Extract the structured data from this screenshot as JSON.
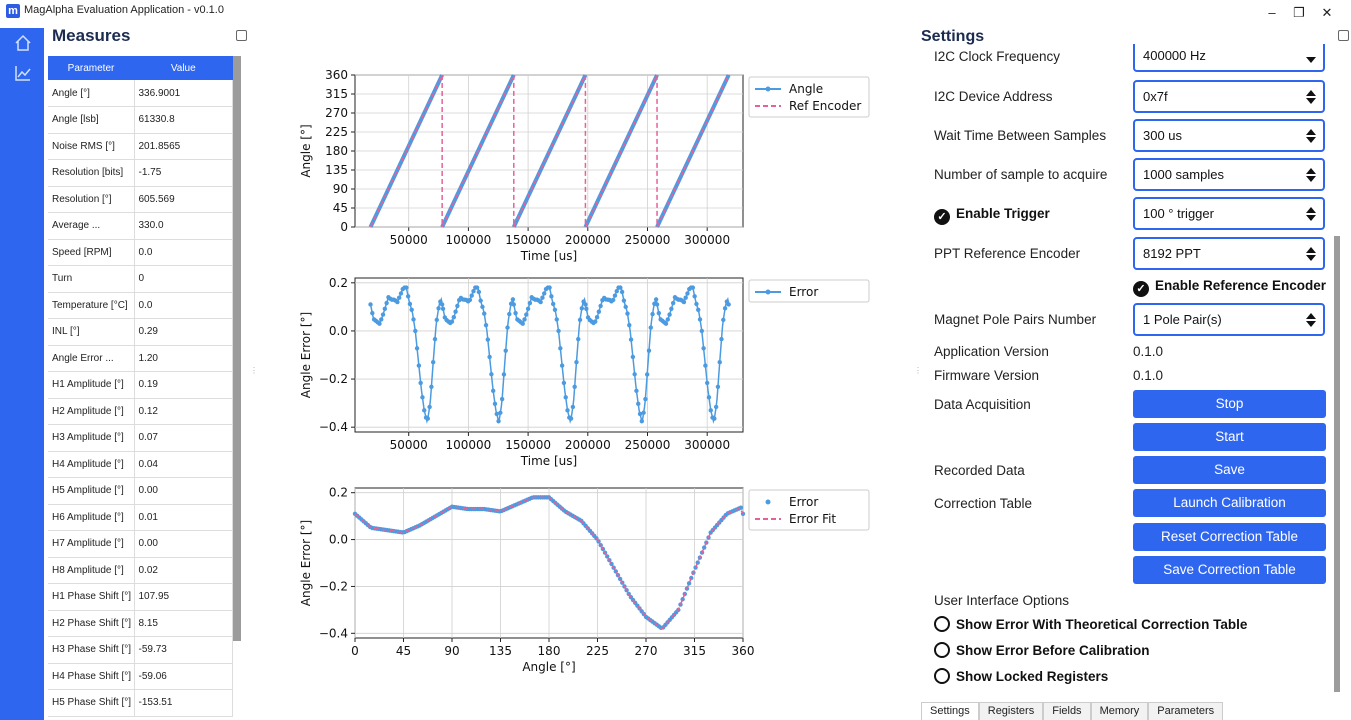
{
  "window": {
    "logo": "m",
    "title": "MagAlpha Evaluation Application - v0.1.0",
    "minimize": "–",
    "maximize": "❐",
    "close": "✕"
  },
  "nav": {
    "home_icon": "home-icon",
    "chart_icon": "chart-line-icon",
    "accent": "#2f66f0"
  },
  "measures": {
    "title": "Measures",
    "headers": [
      "Parameter",
      "Value"
    ],
    "rows": [
      [
        "Angle [°]",
        "336.9001"
      ],
      [
        "Angle [lsb]",
        "61330.8"
      ],
      [
        "Noise RMS [°]",
        "201.8565"
      ],
      [
        "Resolution [bits]",
        "-1.75"
      ],
      [
        "Resolution [°]",
        "605.569"
      ],
      [
        "Average ...",
        "330.0"
      ],
      [
        "Speed [RPM]",
        "0.0"
      ],
      [
        "Turn",
        "0"
      ],
      [
        "Temperature [°C]",
        "0.0"
      ],
      [
        "INL [°]",
        "0.29"
      ],
      [
        "Angle Error ...",
        "1.20"
      ],
      [
        "H1 Amplitude [°]",
        "0.19"
      ],
      [
        "H2 Amplitude [°]",
        "0.12"
      ],
      [
        "H3 Amplitude [°]",
        "0.07"
      ],
      [
        "H4 Amplitude [°]",
        "0.04"
      ],
      [
        "H5 Amplitude [°]",
        "0.00"
      ],
      [
        "H6 Amplitude [°]",
        "0.01"
      ],
      [
        "H7 Amplitude [°]",
        "0.00"
      ],
      [
        "H8 Amplitude [°]",
        "0.02"
      ],
      [
        "H1 Phase Shift [°]",
        "107.95"
      ],
      [
        "H2 Phase Shift [°]",
        "8.15"
      ],
      [
        "H3 Phase Shift [°]",
        "-59.73"
      ],
      [
        "H4 Phase Shift [°]",
        "-59.06"
      ],
      [
        "H5 Phase Shift [°]",
        "-153.51"
      ]
    ]
  },
  "chart_data": [
    {
      "type": "line",
      "xlabel": "Time [us]",
      "ylabel": "Angle [°]",
      "xlim": [
        5000,
        330000
      ],
      "ylim": [
        0,
        360
      ],
      "xticks": [
        50000,
        100000,
        150000,
        200000,
        250000,
        300000
      ],
      "yticks": [
        0,
        45,
        90,
        135,
        180,
        225,
        270,
        315,
        360
      ],
      "grid": true,
      "legend": "top-right-outside",
      "series": [
        {
          "name": "Angle",
          "color": "#4c9be0",
          "style": "solid-dots",
          "segments": [
            [
              [
                18000,
                0
              ],
              [
                78000,
                360
              ]
            ],
            [
              [
                78000,
                0
              ],
              [
                138000,
                360
              ]
            ],
            [
              [
                138000,
                0
              ],
              [
                198000,
                360
              ]
            ],
            [
              [
                198000,
                0
              ],
              [
                258000,
                360
              ]
            ],
            [
              [
                258000,
                0
              ],
              [
                318000,
                360
              ]
            ]
          ]
        },
        {
          "name": "Ref Encoder",
          "color": "#e8609a",
          "style": "dashed",
          "segments": [
            [
              [
                18000,
                0
              ],
              [
                78000,
                360
              ],
              [
                78000,
                0
              ],
              [
                138000,
                360
              ],
              [
                138000,
                0
              ],
              [
                198000,
                360
              ],
              [
                198000,
                0
              ],
              [
                258000,
                360
              ],
              [
                258000,
                0
              ],
              [
                318000,
                360
              ]
            ]
          ]
        }
      ]
    },
    {
      "type": "line",
      "xlabel": "Time [us]",
      "ylabel": "Angle Error [°]",
      "xlim": [
        5000,
        330000
      ],
      "ylim": [
        -0.42,
        0.22
      ],
      "xticks": [
        50000,
        100000,
        150000,
        200000,
        250000,
        300000
      ],
      "yticks": [
        -0.4,
        -0.2,
        0.0,
        0.2
      ],
      "grid": true,
      "legend": "top-right-outside",
      "series": [
        {
          "name": "Error",
          "color": "#4c9be0"
        }
      ]
    },
    {
      "type": "scatter",
      "xlabel": "Angle [°]",
      "ylabel": "Angle Error [°]",
      "xlim": [
        0,
        360
      ],
      "ylim": [
        -0.42,
        0.22
      ],
      "xticks": [
        0,
        45,
        90,
        135,
        180,
        225,
        270,
        315,
        360
      ],
      "yticks": [
        -0.4,
        -0.2,
        0.0,
        0.2
      ],
      "grid": true,
      "legend": "top-right-outside",
      "series": [
        {
          "name": "Error",
          "color": "#4c9be0"
        },
        {
          "name": "Error Fit",
          "color": "#e8609a"
        }
      ],
      "profile": {
        "x": [
          0,
          15,
          30,
          45,
          60,
          75,
          90,
          105,
          120,
          135,
          150,
          165,
          180,
          195,
          210,
          225,
          240,
          255,
          270,
          285,
          300,
          315,
          330,
          345,
          360
        ],
        "y": [
          0.11,
          0.05,
          0.04,
          0.03,
          0.06,
          0.1,
          0.14,
          0.13,
          0.13,
          0.12,
          0.15,
          0.18,
          0.18,
          0.12,
          0.08,
          0.0,
          -0.12,
          -0.24,
          -0.33,
          -0.38,
          -0.3,
          -0.13,
          0.03,
          0.11,
          0.14
        ]
      }
    }
  ],
  "settings": {
    "title": "Settings",
    "fields": [
      {
        "label": "I2C Clock Frequency",
        "value": "400000 Hz"
      },
      {
        "label": "I2C Device Address",
        "value": "0x7f"
      },
      {
        "label": "Wait Time Between Samples",
        "value": "300 us"
      },
      {
        "label": "Number of sample to acquire",
        "value": "1000 samples"
      },
      {
        "label": "Enable Trigger",
        "value": "100 ° trigger"
      },
      {
        "label": "PPT Reference Encoder",
        "value": "8192 PPT"
      },
      {
        "label": "Magnet Pole Pairs Number",
        "value": "1 Pole Pair(s)"
      }
    ],
    "enable_reference_encoder": "Enable Reference Encoder",
    "app_version_label": "Application Version",
    "app_version": "0.1.0",
    "fw_version_label": "Firmware Version",
    "fw_version": "0.1.0",
    "data_acquisition_label": "Data Acquisition",
    "stop": "Stop",
    "start": "Start",
    "recorded_data_label": "Recorded Data",
    "save": "Save",
    "correction_table_label": "Correction Table",
    "launch_calibration": "Launch Calibration",
    "reset_correction_table": "Reset Correction Table",
    "save_correction_table": "Save Correction Table",
    "ui_options_label": "User Interface Options",
    "opt_theoretical": "Show Error With Theoretical Correction Table",
    "opt_before_cal": "Show Error Before Calibration",
    "opt_locked": "Show Locked Registers"
  },
  "tabs": [
    "Settings",
    "Registers",
    "Fields",
    "Memory",
    "Parameters"
  ]
}
